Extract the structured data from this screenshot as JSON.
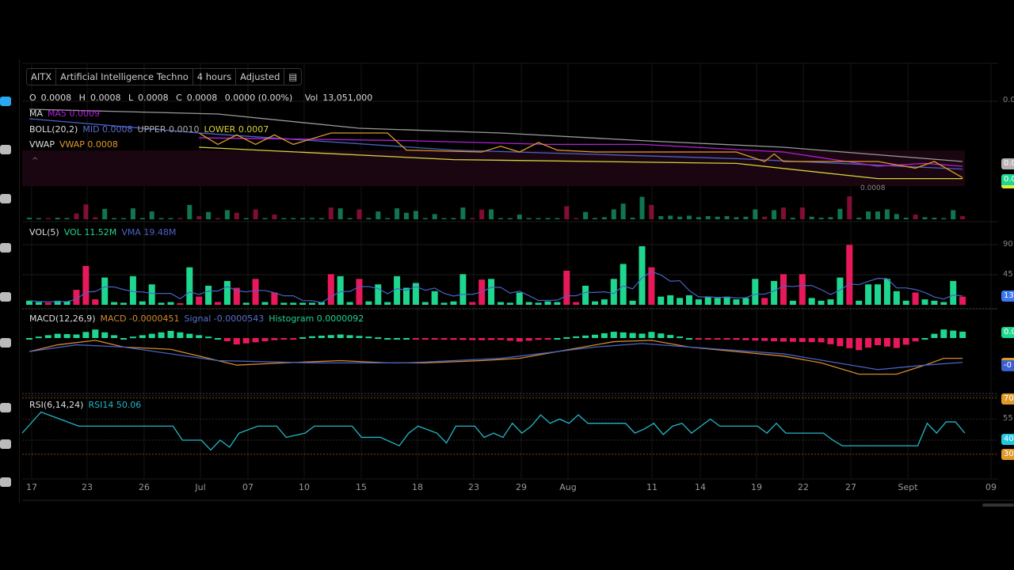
{
  "header": {
    "symbol": "AITX",
    "name": "Artificial Intelligence Techno",
    "interval": "4 hours",
    "adjustment": "Adjusted"
  },
  "ohlc": {
    "o_label": "O",
    "o": "0.0008",
    "h_label": "H",
    "h": "0.0008",
    "l_label": "L",
    "l": "0.0008",
    "c_label": "C",
    "c": "0.0008",
    "change": "0.0000 (0.00%)",
    "vol_label": "Vol",
    "vol": "13,051,000"
  },
  "ma": {
    "label": "MA",
    "value": "MA5 0.0009"
  },
  "boll": {
    "label": "BOLL(20,2)",
    "mid": "MID 0.0008",
    "upper": "UPPER 0.0010",
    "lower": "LOWER 0.0007"
  },
  "vwap": {
    "label": "VWAP",
    "value": "VWAP 0.0008"
  },
  "low_marker": "0.0008",
  "volume_panel": {
    "label": "VOL(5)",
    "vol": "VOL 11.52M",
    "vma": "VMA 19.48M"
  },
  "macd_panel": {
    "label": "MACD(12,26,9)",
    "macd": "MACD -0.0000451",
    "signal": "Signal -0.0000543",
    "histogram": "Histogram 0.0000092"
  },
  "rsi_panel": {
    "label": "RSI(6,14,24)",
    "rsi": "RSI14 50.06"
  },
  "x_ticks": [
    "17",
    "23",
    "26",
    "Jul",
    "07",
    "10",
    "15",
    "18",
    "23",
    "29",
    "Aug",
    "11",
    "14",
    "19",
    "22",
    "27",
    "Sept",
    "09"
  ],
  "right_axis": {
    "price_top": "0.0",
    "price_upper": "0.0",
    "price_last": "0.0",
    "vol_90": "90",
    "vol_45": "45",
    "vol_last": "13",
    "macd_hist": "0.0",
    "macd_signal": "-0",
    "rsi_70": "70",
    "rsi_55": "55",
    "rsi_40": "40",
    "rsi_30": "30"
  },
  "colors": {
    "up": "#1fd68f",
    "down": "#e8195a",
    "ma": "#b41fd6",
    "mid": "#4a62c7",
    "upper": "#9a9a9a",
    "lower": "#d6d23a",
    "vwap": "#e09a2a",
    "macd": "#d48a2a",
    "signal": "#4a62c7",
    "rsi": "#22b8c8"
  },
  "toolbar_icons": [
    "chart-icon",
    "monitor-icon",
    "analytics-icon",
    "wallet-icon",
    "heart-icon",
    "apps-icon",
    "search-icon",
    "chat-icon",
    "message-icon"
  ],
  "chart_data": {
    "type": "line",
    "volume_millions": [
      6,
      4,
      3,
      6,
      5,
      22,
      57,
      8,
      40,
      4,
      3,
      42,
      5,
      30,
      3,
      4,
      2,
      55,
      12,
      28,
      4,
      35,
      25,
      3,
      38,
      4,
      18,
      3,
      3,
      3,
      3,
      4,
      45,
      42,
      4,
      38,
      5,
      30,
      4,
      42,
      25,
      32,
      4,
      20,
      3,
      5,
      45,
      4,
      37,
      38,
      4,
      3,
      18,
      4,
      3,
      5,
      4,
      50,
      4,
      28,
      5,
      8,
      38,
      60,
      6,
      86,
      55,
      12,
      14,
      10,
      14,
      8,
      12,
      10,
      12,
      8,
      10,
      38,
      10,
      35,
      45,
      6,
      45,
      10,
      6,
      8,
      40,
      88,
      6,
      30,
      30,
      38,
      20,
      6,
      18,
      8,
      6,
      4,
      35,
      12
    ],
    "volume_dir": "uuduuddduuuuuuuududududududuuuuuduuduuuuuuuuuuudduuuuuuuudduuuuuuuduuuuuuuuuuudududuuuuduuuuuuduuuuduu",
    "price": {
      "upper": [
        [
          0,
          0.00155
        ],
        [
          20,
          0.0015
        ],
        [
          35,
          0.00135
        ],
        [
          50,
          0.0013
        ],
        [
          65,
          0.00122
        ],
        [
          80,
          0.00115
        ],
        [
          99,
          0.001
        ]
      ],
      "mid": [
        [
          0,
          0.00145
        ],
        [
          18,
          0.0013
        ],
        [
          45,
          0.00112
        ],
        [
          75,
          0.00103
        ],
        [
          99,
          0.00092
        ]
      ],
      "lower": [
        [
          18,
          0.00115
        ],
        [
          45,
          0.00102
        ],
        [
          75,
          0.00098
        ],
        [
          90,
          0.00082
        ],
        [
          99,
          0.00082
        ]
      ],
      "ma": [
        [
          18,
          0.00125
        ],
        [
          40,
          0.00122
        ],
        [
          55,
          0.00118
        ],
        [
          65,
          0.00118
        ],
        [
          80,
          0.0011
        ],
        [
          90,
          0.00095
        ],
        [
          95,
          0.00098
        ],
        [
          99,
          0.00095
        ]
      ],
      "vwap": [
        [
          18,
          0.0013
        ],
        [
          20,
          0.00118
        ],
        [
          22,
          0.00128
        ],
        [
          24,
          0.00118
        ],
        [
          26,
          0.00128
        ],
        [
          28,
          0.00118
        ],
        [
          32,
          0.0013
        ],
        [
          38,
          0.0013
        ],
        [
          40,
          0.00112
        ],
        [
          48,
          0.0011
        ],
        [
          50,
          0.00116
        ],
        [
          52,
          0.0011
        ],
        [
          54,
          0.0012
        ],
        [
          56,
          0.00112
        ],
        [
          60,
          0.0011
        ],
        [
          75,
          0.0011
        ],
        [
          78,
          0.001
        ],
        [
          79,
          0.00108
        ],
        [
          80,
          0.001
        ],
        [
          90,
          0.001
        ],
        [
          94,
          0.00093
        ],
        [
          96,
          0.001
        ],
        [
          99,
          0.00083
        ]
      ]
    },
    "macd_e6": [
      [
        0,
        -30
      ],
      [
        3,
        -15
      ],
      [
        7,
        -5
      ],
      [
        10,
        -20
      ],
      [
        15,
        -25
      ],
      [
        22,
        -60
      ],
      [
        27,
        -55
      ],
      [
        33,
        -50
      ],
      [
        38,
        -55
      ],
      [
        42,
        -55
      ],
      [
        48,
        -50
      ],
      [
        52,
        -45
      ],
      [
        56,
        -30
      ],
      [
        62,
        -8
      ],
      [
        66,
        -5
      ],
      [
        70,
        -20
      ],
      [
        75,
        -30
      ],
      [
        80,
        -40
      ],
      [
        84,
        -55
      ],
      [
        88,
        -80
      ],
      [
        92,
        -80
      ],
      [
        95,
        -60
      ],
      [
        97,
        -45
      ],
      [
        99,
        -45
      ]
    ],
    "signal_e6": [
      [
        0,
        -30
      ],
      [
        5,
        -15
      ],
      [
        10,
        -20
      ],
      [
        20,
        -50
      ],
      [
        30,
        -55
      ],
      [
        40,
        -55
      ],
      [
        50,
        -45
      ],
      [
        60,
        -20
      ],
      [
        65,
        -12
      ],
      [
        70,
        -20
      ],
      [
        80,
        -35
      ],
      [
        90,
        -70
      ],
      [
        95,
        -60
      ],
      [
        99,
        -54
      ]
    ],
    "rsi": [
      [
        0,
        45
      ],
      [
        2,
        60
      ],
      [
        4,
        55
      ],
      [
        6,
        50
      ],
      [
        16,
        50
      ],
      [
        17,
        40
      ],
      [
        19,
        40
      ],
      [
        20,
        33
      ],
      [
        21,
        40
      ],
      [
        22,
        35
      ],
      [
        23,
        45
      ],
      [
        25,
        50
      ],
      [
        27,
        50
      ],
      [
        28,
        42
      ],
      [
        30,
        45
      ],
      [
        31,
        50
      ],
      [
        35,
        50
      ],
      [
        36,
        42
      ],
      [
        38,
        42
      ],
      [
        40,
        36
      ],
      [
        41,
        45
      ],
      [
        42,
        50
      ],
      [
        44,
        45
      ],
      [
        45,
        38
      ],
      [
        46,
        50
      ],
      [
        48,
        50
      ],
      [
        49,
        42
      ],
      [
        50,
        45
      ],
      [
        51,
        42
      ],
      [
        52,
        52
      ],
      [
        53,
        45
      ],
      [
        54,
        50
      ],
      [
        55,
        58
      ],
      [
        56,
        52
      ],
      [
        57,
        55
      ],
      [
        58,
        52
      ],
      [
        59,
        58
      ],
      [
        60,
        52
      ],
      [
        64,
        52
      ],
      [
        65,
        45
      ],
      [
        66,
        48
      ],
      [
        67,
        52
      ],
      [
        68,
        44
      ],
      [
        69,
        50
      ],
      [
        70,
        52
      ],
      [
        71,
        45
      ],
      [
        72,
        50
      ],
      [
        73,
        55
      ],
      [
        74,
        50
      ],
      [
        78,
        50
      ],
      [
        79,
        45
      ],
      [
        80,
        52
      ],
      [
        81,
        45
      ],
      [
        85,
        45
      ],
      [
        86,
        40
      ],
      [
        87,
        36
      ],
      [
        95,
        36
      ],
      [
        96,
        52
      ],
      [
        97,
        45
      ],
      [
        98,
        53
      ],
      [
        99,
        53
      ],
      [
        100,
        45
      ]
    ],
    "rsi_levels": [
      70,
      55,
      40,
      30
    ]
  }
}
